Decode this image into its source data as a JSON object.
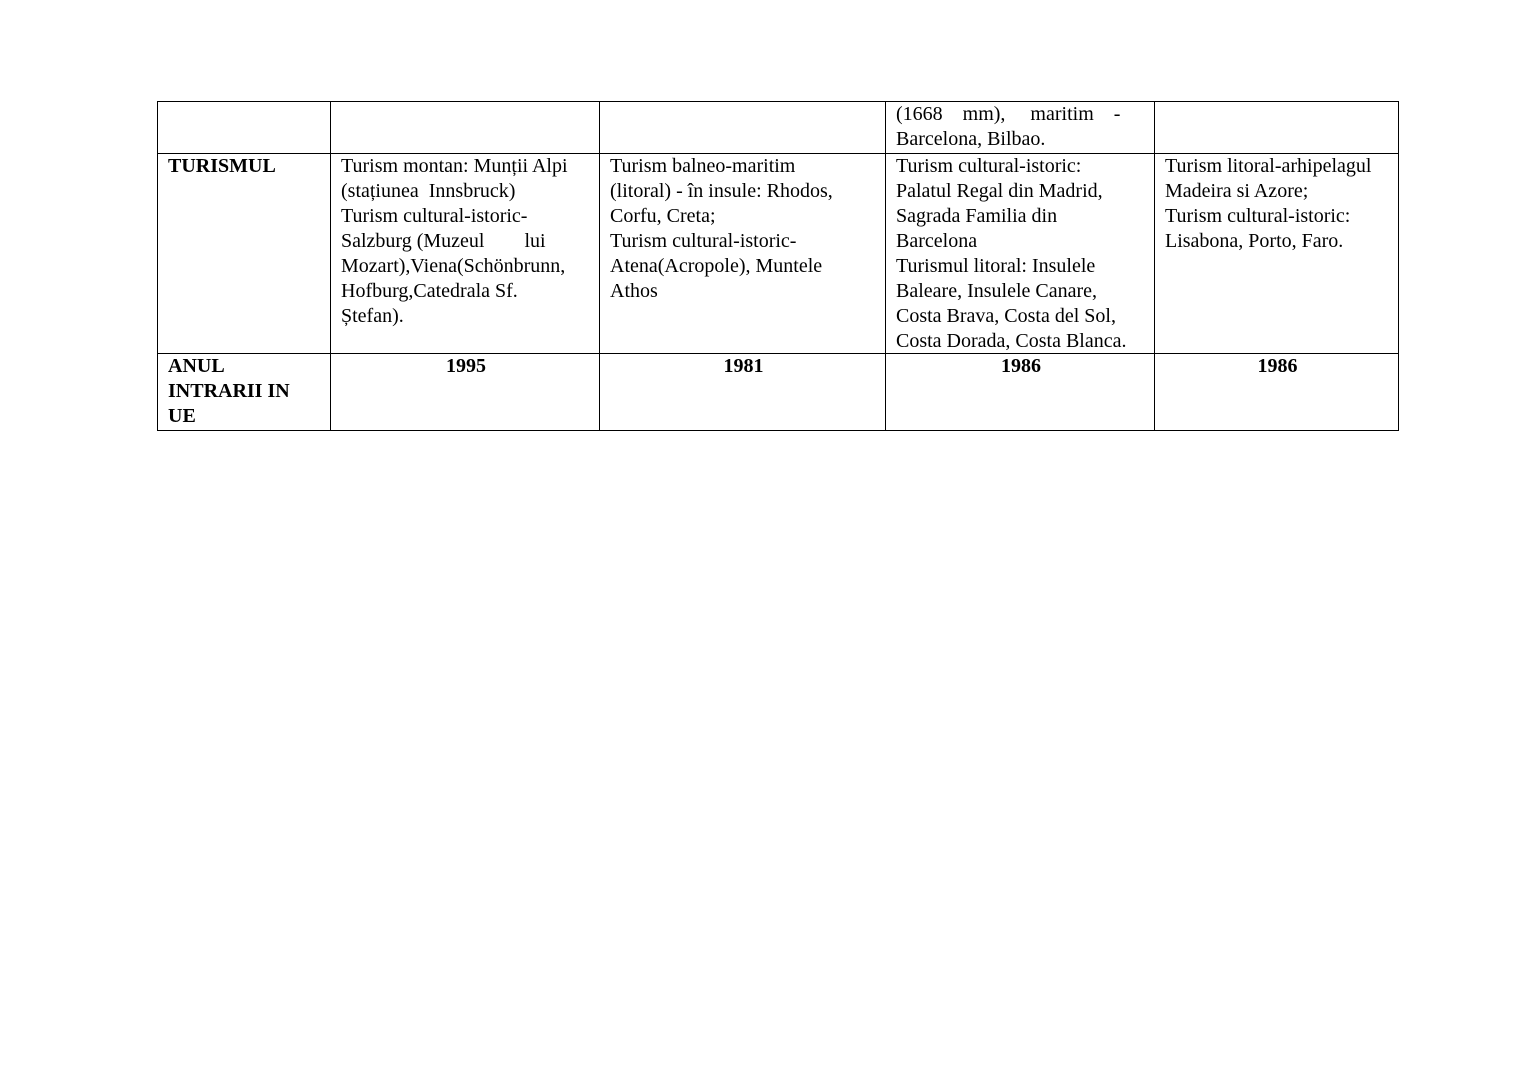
{
  "table": {
    "row_continued": {
      "label": "",
      "austria": "",
      "grecia": "",
      "spania": "(1668    mm),     maritim    -\nBarcelona, Bilbao.",
      "portugalia": ""
    },
    "row_turism": {
      "label": "TURISMUL",
      "austria": "Turism montan: Munții Alpi\n(stațiunea  Innsbruck)\nTurism cultural-istoric-\nSalzburg (Muzeul        lui\nMozart),Viena(Schönbrunn,\nHofburg,Catedrala Sf.\nȘtefan).",
      "grecia": "Turism balneo-maritim\n(litoral) - în insule: Rhodos,\nCorfu, Creta;\nTurism cultural-istoric-\nAtena(Acropole), Muntele\nAthos",
      "spania": "Turism cultural-istoric:\nPalatul Regal din Madrid,\nSagrada Familia din\nBarcelona\nTurismul litoral: Insulele\nBaleare, Insulele Canare,\nCosta Brava, Costa del Sol,\nCosta Dorada, Costa Blanca.",
      "portugalia": "Turism litoral-arhipelagul\nMadeira si Azore;\nTurism cultural-istoric:\nLisabona, Porto, Faro."
    },
    "row_anul": {
      "label": "ANUL\nINTRARII IN\nUE",
      "austria": "1995",
      "grecia": "1981",
      "spania": "1986",
      "portugalia": "1986"
    }
  }
}
